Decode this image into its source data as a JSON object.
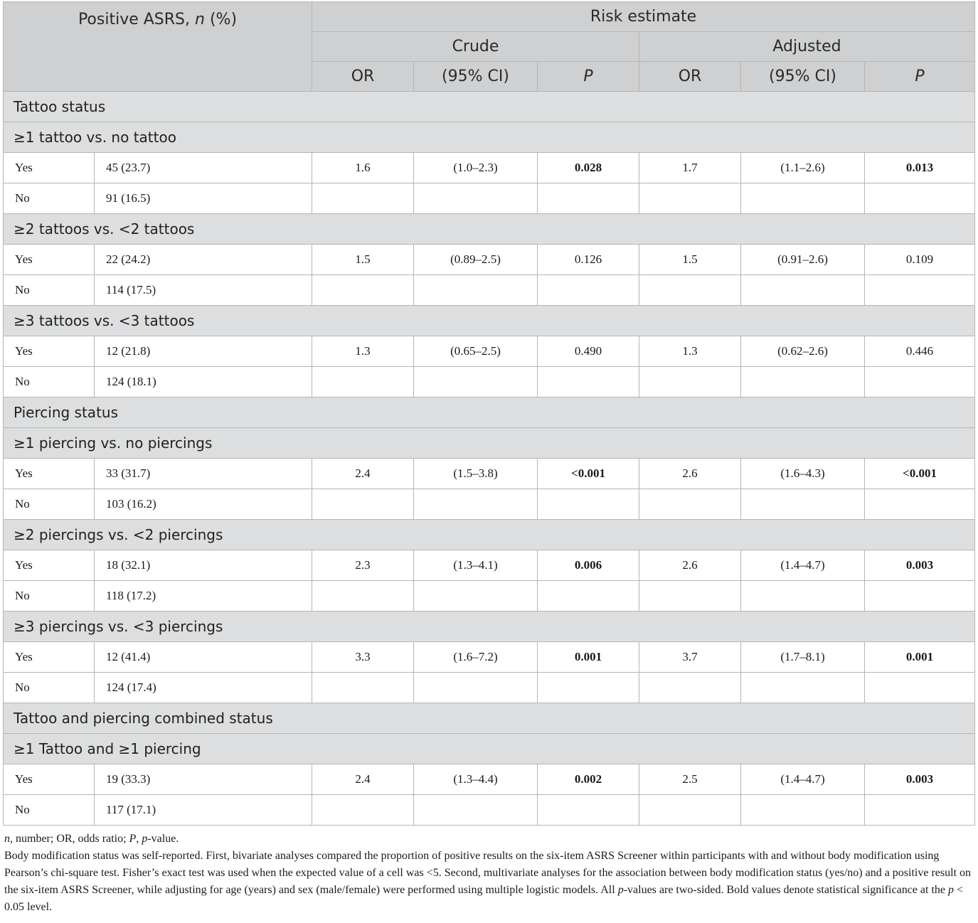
{
  "header": {
    "col1": "Positive ASRS, ",
    "col1_n": "n",
    "col1_pct": " (%)",
    "risk": "Risk estimate",
    "crude": "Crude",
    "adjusted": "Adjusted",
    "or": "OR",
    "ci": "(95% CI)",
    "p": "P"
  },
  "sections": [
    {
      "title": "Tattoo status"
    },
    {
      "title": "≥1 tattoo vs. no tattoo",
      "yes": {
        "label": "Yes",
        "n": "45 (23.7)",
        "c_or": "1.6",
        "c_ci": "(1.0–2.3)",
        "c_p": "0.028",
        "a_or": "1.7",
        "a_ci": "(1.1–2.6)",
        "a_p": "0.013"
      },
      "no": {
        "label": "No",
        "n": "91 (16.5)"
      }
    },
    {
      "title": "≥2 tattoos vs. <2 tattoos",
      "yes": {
        "label": "Yes",
        "n": "22 (24.2)",
        "c_or": "1.5",
        "c_ci": "(0.89–2.5)",
        "c_p": "0.126",
        "a_or": "1.5",
        "a_ci": "(0.91–2.6)",
        "a_p": "0.109"
      },
      "no": {
        "label": "No",
        "n": "114 (17.5)"
      }
    },
    {
      "title": "≥3 tattoos vs. <3 tattoos",
      "yes": {
        "label": "Yes",
        "n": "12 (21.8)",
        "c_or": "1.3",
        "c_ci": "(0.65–2.5)",
        "c_p": "0.490",
        "a_or": "1.3",
        "a_ci": "(0.62–2.6)",
        "a_p": "0.446"
      },
      "no": {
        "label": "No",
        "n": "124 (18.1)"
      }
    },
    {
      "title": "Piercing status"
    },
    {
      "title": "≥1 piercing vs. no piercings",
      "yes": {
        "label": "Yes",
        "n": "33 (31.7)",
        "c_or": "2.4",
        "c_ci": "(1.5–3.8)",
        "c_p": "<0.001",
        "a_or": "2.6",
        "a_ci": "(1.6–4.3)",
        "a_p": "<0.001"
      },
      "no": {
        "label": "No",
        "n": "103 (16.2)"
      }
    },
    {
      "title": "≥2 piercings vs. <2 piercings",
      "yes": {
        "label": "Yes",
        "n": "18 (32.1)",
        "c_or": "2.3",
        "c_ci": "(1.3–4.1)",
        "c_p": "0.006",
        "a_or": "2.6",
        "a_ci": "(1.4–4.7)",
        "a_p": "0.003"
      },
      "no": {
        "label": "No",
        "n": "118 (17.2)"
      }
    },
    {
      "title": "≥3 piercings vs. <3 piercings",
      "yes": {
        "label": "Yes",
        "n": "12 (41.4)",
        "c_or": "3.3",
        "c_ci": "(1.6–7.2)",
        "c_p": "0.001",
        "a_or": "3.7",
        "a_ci": "(1.7–8.1)",
        "a_p": "0.001"
      },
      "no": {
        "label": "No",
        "n": "124 (17.4)"
      }
    },
    {
      "title": "Tattoo and piercing combined status"
    },
    {
      "title": "≥1 Tattoo and ≥1 piercing",
      "yes": {
        "label": "Yes",
        "n": "19 (33.3)",
        "c_or": "2.4",
        "c_ci": "(1.3–4.4)",
        "c_p": "0.002",
        "a_or": "2.5",
        "a_ci": "(1.4–4.7)",
        "a_p": "0.003"
      },
      "no": {
        "label": "No",
        "n": "117 (17.1)"
      }
    }
  ],
  "notes": {
    "abbrev_n": "n",
    "abbrev_1": ", number; OR, odds ratio; ",
    "abbrev_P": "P",
    "abbrev_2": ", ",
    "abbrev_pv": "p",
    "abbrev_3": "-value.",
    "para_1": "Body modification status was self-reported. First, bivariate analyses compared the proportion of positive results on the six-item ASRS Screener within participants with and without body modification using Pearson’s chi-square test. Fisher’s exact test was used when the expected value of a cell was <5. Second, multivariate analyses for the association between body modification status (yes/no) and a positive result on the six-item ASRS Screener, while adjusting for age (years) and sex (male/female) were performed using multiple logistic models. All ",
    "para_p1": "p",
    "para_2": "-values are two-sided. Bold values denote statistical significance at the ",
    "para_p2": "p",
    "para_3": " < 0.05 level."
  }
}
